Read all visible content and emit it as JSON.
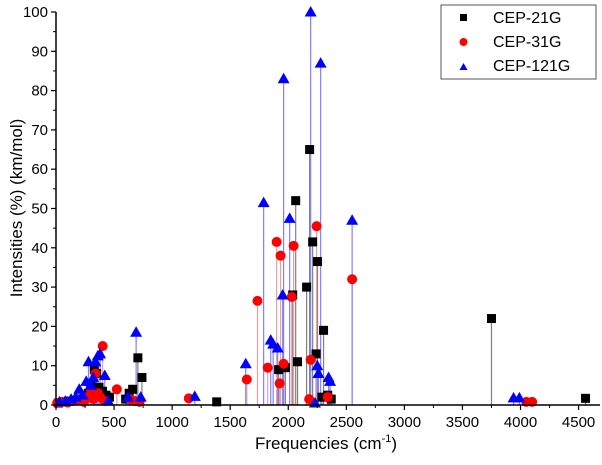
{
  "chart_data": {
    "type": "scatter",
    "subtype": "stem",
    "title": "",
    "xlabel": "Frequencies (cm",
    "xlabel_sup": "-1",
    "xlabel_end": ")",
    "ylabel": "Intensities (%) (km/mol)",
    "xlim": [
      0,
      4650
    ],
    "ylim": [
      0,
      100
    ],
    "xticks": [
      0,
      500,
      1000,
      1500,
      2000,
      2500,
      3000,
      3500,
      4000,
      4500
    ],
    "yticks": [
      0,
      10,
      20,
      30,
      40,
      50,
      60,
      70,
      80,
      90,
      100
    ],
    "xtick_labels": [
      "0",
      "500",
      "1000",
      "1500",
      "2000",
      "2500",
      "3000",
      "3500",
      "4000",
      "4500"
    ],
    "ytick_labels": [
      "0",
      "10",
      "20",
      "30",
      "40",
      "50",
      "60",
      "70",
      "80",
      "90",
      "100"
    ],
    "grid": false,
    "legend_position": "top-right",
    "series": [
      {
        "name": "CEP-21G",
        "marker": "square",
        "color": "#000000",
        "stem_color": "#808080",
        "points": [
          [
            20,
            0.5
          ],
          [
            60,
            0.8
          ],
          [
            110,
            1.0
          ],
          [
            160,
            1.2
          ],
          [
            210,
            1.5
          ],
          [
            250,
            2.5
          ],
          [
            280,
            3.0
          ],
          [
            300,
            5.0
          ],
          [
            330,
            9.0
          ],
          [
            350,
            8.0
          ],
          [
            370,
            4.5
          ],
          [
            400,
            3.5
          ],
          [
            430,
            2.5
          ],
          [
            460,
            2.0
          ],
          [
            600,
            1.5
          ],
          [
            630,
            3.0
          ],
          [
            660,
            4.0
          ],
          [
            705,
            12.0
          ],
          [
            740,
            7.0
          ],
          [
            1384,
            0.8
          ],
          [
            1917,
            9.0
          ],
          [
            1975,
            9.5
          ],
          [
            2038,
            28.0
          ],
          [
            2064,
            52.0
          ],
          [
            2080,
            11.0
          ],
          [
            2158,
            30.0
          ],
          [
            2184,
            65.0
          ],
          [
            2210,
            41.5
          ],
          [
            2240,
            13.0
          ],
          [
            2252,
            36.5
          ],
          [
            2290,
            2.0
          ],
          [
            2304,
            19.0
          ],
          [
            2340,
            2.5
          ],
          [
            2370,
            1.5
          ],
          [
            3750,
            22.0
          ],
          [
            4560,
            1.7
          ]
        ]
      },
      {
        "name": "CEP-31G",
        "marker": "circle",
        "color": "#ff0000",
        "stem_color": "#e8a0a0",
        "points": [
          [
            10,
            0.5
          ],
          [
            50,
            0.8
          ],
          [
            100,
            0.6
          ],
          [
            150,
            1.0
          ],
          [
            200,
            1.2
          ],
          [
            240,
            0.8
          ],
          [
            270,
            2.0
          ],
          [
            300,
            4.0
          ],
          [
            320,
            1.5
          ],
          [
            340,
            8.0
          ],
          [
            360,
            3.0
          ],
          [
            380,
            2.0
          ],
          [
            402,
            15.0
          ],
          [
            420,
            1.0
          ],
          [
            524,
            4.0
          ],
          [
            640,
            1.5
          ],
          [
            680,
            1.0
          ],
          [
            720,
            0.8
          ],
          [
            1144,
            1.7
          ],
          [
            1643,
            6.5
          ],
          [
            1735,
            26.5
          ],
          [
            1823,
            9.5
          ],
          [
            1900,
            41.5
          ],
          [
            1926,
            5.5
          ],
          [
            1934,
            38.0
          ],
          [
            1960,
            10.5
          ],
          [
            2030,
            27.5
          ],
          [
            2046,
            40.5
          ],
          [
            2180,
            1.5
          ],
          [
            2193,
            11.5
          ],
          [
            2244,
            45.5
          ],
          [
            2340,
            2.0
          ],
          [
            2550,
            32.0
          ],
          [
            4050,
            0.8
          ],
          [
            4100,
            0.8
          ]
        ]
      },
      {
        "name": "CEP-121G",
        "marker": "triangle",
        "color": "#0000ff",
        "stem_color": "#8080ff",
        "points": [
          [
            30,
            0.8
          ],
          [
            80,
            1.0
          ],
          [
            130,
            1.5
          ],
          [
            170,
            2.0
          ],
          [
            200,
            4.0
          ],
          [
            230,
            2.5
          ],
          [
            260,
            6.0
          ],
          [
            280,
            11.0
          ],
          [
            300,
            5.0
          ],
          [
            320,
            7.0
          ],
          [
            340,
            11.0
          ],
          [
            360,
            12.5
          ],
          [
            380,
            13.0
          ],
          [
            420,
            7.5
          ],
          [
            450,
            1.0
          ],
          [
            620,
            2.0
          ],
          [
            690,
            18.5
          ],
          [
            730,
            2.0
          ],
          [
            1195,
            2.2
          ],
          [
            1634,
            10.5
          ],
          [
            1788,
            51.5
          ],
          [
            1849,
            16.5
          ],
          [
            1870,
            15.5
          ],
          [
            1909,
            14.5
          ],
          [
            1952,
            28.0
          ],
          [
            1960,
            83.0
          ],
          [
            2012,
            47.5
          ],
          [
            2193,
            100.0
          ],
          [
            2230,
            0.5
          ],
          [
            2250,
            10.0
          ],
          [
            2260,
            8.0
          ],
          [
            2279,
            87.0
          ],
          [
            2347,
            7.0
          ],
          [
            2360,
            6.0
          ],
          [
            2550,
            47.0
          ],
          [
            3940,
            1.8
          ],
          [
            3990,
            1.8
          ]
        ]
      }
    ]
  }
}
